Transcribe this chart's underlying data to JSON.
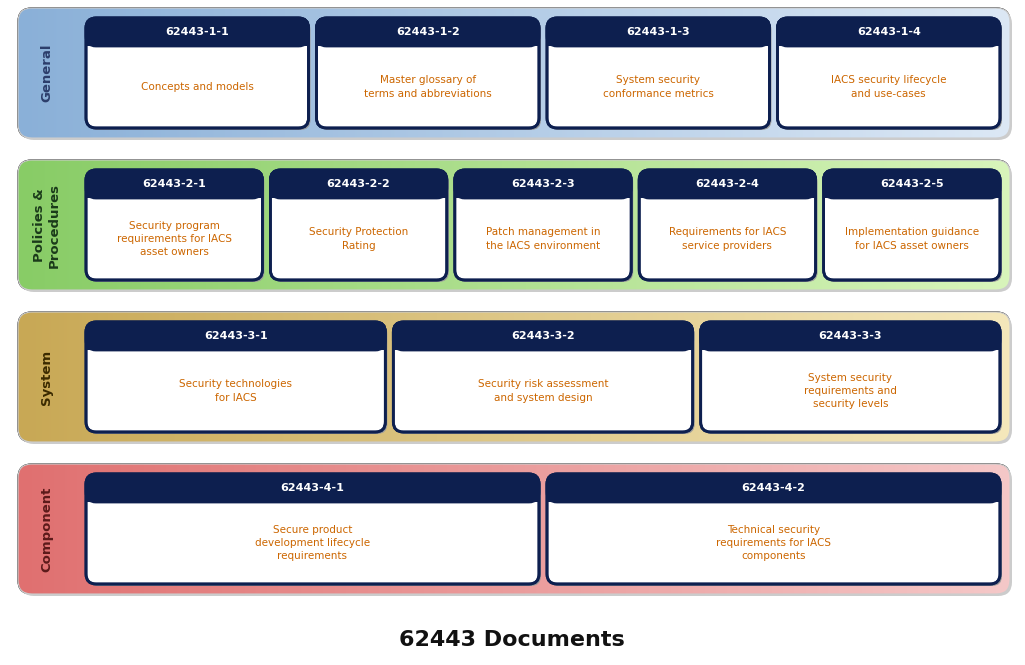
{
  "title": "62443 Documents",
  "title_fontsize": 16,
  "title_fontweight": "bold",
  "rows": [
    {
      "label": "General",
      "label_text_color": "#2c3e6b",
      "bg_color_left": "#8ab0d8",
      "bg_color_right": "#dce8f5",
      "cards": [
        {
          "id": "62443-1-1",
          "text": "Concepts and models"
        },
        {
          "id": "62443-1-2",
          "text": "Master glossary of\nterms and abbreviations"
        },
        {
          "id": "62443-1-3",
          "text": "System security\nconformance metrics"
        },
        {
          "id": "62443-1-4",
          "text": "IACS security lifecycle\nand use-cases"
        }
      ]
    },
    {
      "label": "Policies &\nProcedures",
      "label_text_color": "#1a3a1a",
      "bg_color_left": "#88cc66",
      "bg_color_right": "#d8f5bb",
      "cards": [
        {
          "id": "62443-2-1",
          "text": "Security program\nrequirements for IACS\nasset owners"
        },
        {
          "id": "62443-2-2",
          "text": "Security Protection\nRating"
        },
        {
          "id": "62443-2-3",
          "text": "Patch management in\nthe IACS environment"
        },
        {
          "id": "62443-2-4",
          "text": "Requirements for IACS\nservice providers"
        },
        {
          "id": "62443-2-5",
          "text": "Implementation guidance\nfor IACS asset owners"
        }
      ]
    },
    {
      "label": "System",
      "label_text_color": "#3a2a00",
      "bg_color_left": "#c8a855",
      "bg_color_right": "#f5e8bb",
      "cards": [
        {
          "id": "62443-3-1",
          "text": "Security technologies\nfor IACS"
        },
        {
          "id": "62443-3-2",
          "text": "Security risk assessment\nand system design"
        },
        {
          "id": "62443-3-3",
          "text": "System security\nrequirements and\nsecurity levels"
        }
      ]
    },
    {
      "label": "Component",
      "label_text_color": "#5c1a1a",
      "bg_color_left": "#e07070",
      "bg_color_right": "#f5c8c8",
      "cards": [
        {
          "id": "62443-4-1",
          "text": "Secure product\ndevelopment lifecycle\nrequirements"
        },
        {
          "id": "62443-4-2",
          "text": "Technical security\nrequirements for IACS\ncomponents"
        }
      ]
    }
  ],
  "card_bg": "#ffffff",
  "card_header_bg": "#0d1f4f",
  "card_header_text": "#ffffff",
  "card_body_text": "#cc6600",
  "card_border_color": "#0d1f4f",
  "row_shadow_color": "#bbbbbb"
}
